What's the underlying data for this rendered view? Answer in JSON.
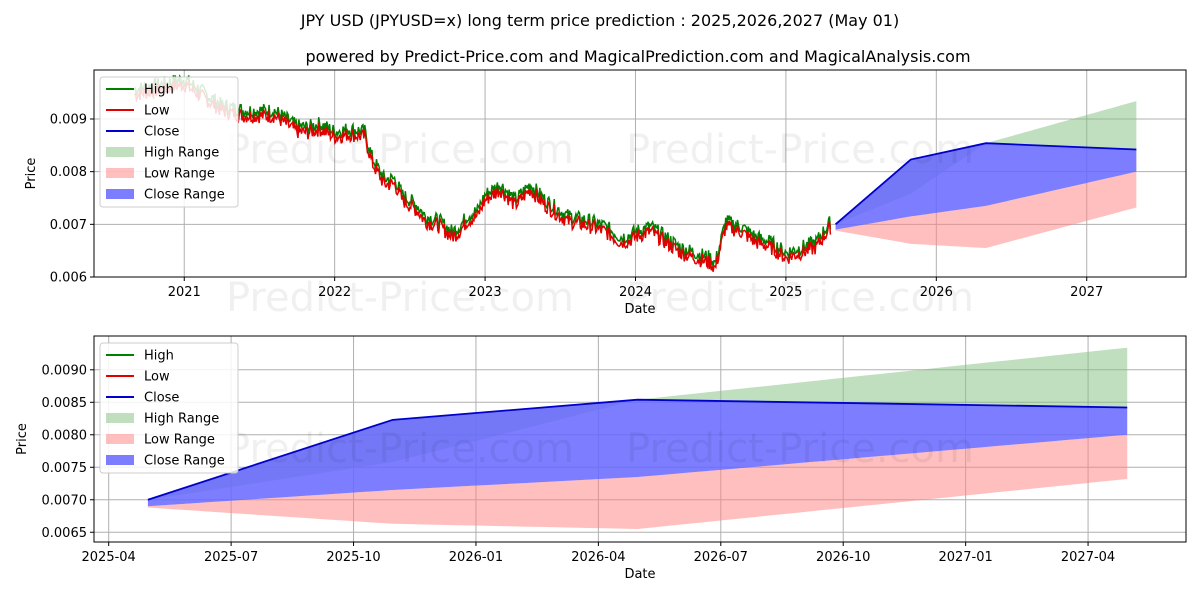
{
  "title_line1": "JPY USD (JPYUSD=x) long term price prediction : 2025,2026,2027 (May 01)",
  "title_line2": "powered by Predict-Price.com and MagicalPrediction.com and MagicalAnalysis.com",
  "watermark": "Predict-Price.com",
  "legend": [
    "High",
    "Low",
    "Close",
    "High Range",
    "Low Range",
    "Close Range"
  ],
  "colors": {
    "high": "#008000",
    "low": "#e00000",
    "close": "#0000cc",
    "high_range": "#80c080",
    "low_range": "#ff8080",
    "close_range": "#6666ff"
  },
  "chart_data": [
    {
      "type": "line",
      "name": "history-and-forecast",
      "xlabel": "Date",
      "ylabel": "Price",
      "xlim": [
        2020.4,
        2027.66
      ],
      "ylim": [
        0.006,
        0.00993
      ],
      "xticks": [
        2021,
        2022,
        2023,
        2024,
        2025,
        2026,
        2027
      ],
      "xtick_labels": [
        "2021",
        "2022",
        "2023",
        "2024",
        "2025",
        "2026",
        "2027"
      ],
      "yticks": [
        0.006,
        0.007,
        0.008,
        0.009
      ],
      "ytick_labels": [
        "0.006",
        "0.007",
        "0.008",
        "0.009"
      ],
      "history": {
        "x": [
          2020.67,
          2020.85,
          2021.0,
          2021.1,
          2021.25,
          2021.4,
          2021.5,
          2021.6,
          2021.75,
          2021.82,
          2021.9,
          2022.0,
          2022.1,
          2022.2,
          2022.25,
          2022.33,
          2022.4,
          2022.45,
          2022.55,
          2022.6,
          2022.7,
          2022.78,
          2022.83,
          2022.88,
          2022.95,
          2023.0,
          2023.05,
          2023.1,
          2023.2,
          2023.3,
          2023.4,
          2023.5,
          2023.55,
          2023.7,
          2023.8,
          2023.9,
          2023.95,
          2024.0,
          2024.1,
          2024.2,
          2024.3,
          2024.4,
          2024.5,
          2024.53,
          2024.6,
          2024.7,
          2024.8,
          2024.9,
          2025.0,
          2025.1,
          2025.2,
          2025.25,
          2025.3
        ],
        "close": [
          0.0095,
          0.0096,
          0.0097,
          0.0095,
          0.0092,
          0.0091,
          0.0091,
          0.0091,
          0.0088,
          0.00878,
          0.00885,
          0.0087,
          0.00875,
          0.0087,
          0.0082,
          0.0078,
          0.0078,
          0.0075,
          0.0073,
          0.0071,
          0.007,
          0.0068,
          0.0069,
          0.0071,
          0.0072,
          0.0075,
          0.0076,
          0.0077,
          0.0074,
          0.0077,
          0.0074,
          0.0072,
          0.0071,
          0.007,
          0.0069,
          0.0067,
          0.00672,
          0.0068,
          0.0069,
          0.0067,
          0.0065,
          0.0064,
          0.0063,
          0.0062,
          0.007,
          0.0069,
          0.0067,
          0.0066,
          0.0064,
          0.0065,
          0.0066,
          0.0068,
          0.007
        ]
      },
      "forecast": {
        "x": [
          2025.33,
          2025.83,
          2026.33,
          2027.33
        ],
        "close": [
          0.007,
          0.00823,
          0.00854,
          0.00842
        ],
        "high": [
          0.007,
          0.00758,
          0.00854,
          0.00934
        ],
        "low": [
          0.00688,
          0.00663,
          0.00655,
          0.00732
        ],
        "close_range_low": [
          0.0069,
          0.00715,
          0.00735,
          0.008
        ]
      }
    },
    {
      "type": "line",
      "name": "forecast-zoom",
      "xlabel": "Date",
      "ylabel": "Price",
      "xlim": [
        2025.22,
        2027.45
      ],
      "ylim": [
        0.00635,
        0.00952
      ],
      "xticks": [
        2025.25,
        2025.5,
        2025.75,
        2026.0,
        2026.25,
        2026.5,
        2026.75,
        2027.0,
        2027.25
      ],
      "xtick_labels": [
        "2025-04",
        "2025-07",
        "2025-10",
        "2026-01",
        "2026-04",
        "2026-07",
        "2026-10",
        "2027-01",
        "2027-04"
      ],
      "yticks": [
        0.0065,
        0.007,
        0.0075,
        0.008,
        0.0085,
        0.009
      ],
      "ytick_labels": [
        "0.0065",
        "0.0070",
        "0.0075",
        "0.0080",
        "0.0085",
        "0.0090"
      ],
      "forecast": {
        "x": [
          2025.33,
          2025.83,
          2026.33,
          2027.33
        ],
        "close": [
          0.007,
          0.00823,
          0.00854,
          0.00842
        ],
        "high": [
          0.007,
          0.00758,
          0.00854,
          0.00934
        ],
        "low": [
          0.00688,
          0.00663,
          0.00655,
          0.00732
        ],
        "close_range_low": [
          0.0069,
          0.00715,
          0.00735,
          0.008
        ]
      }
    }
  ]
}
